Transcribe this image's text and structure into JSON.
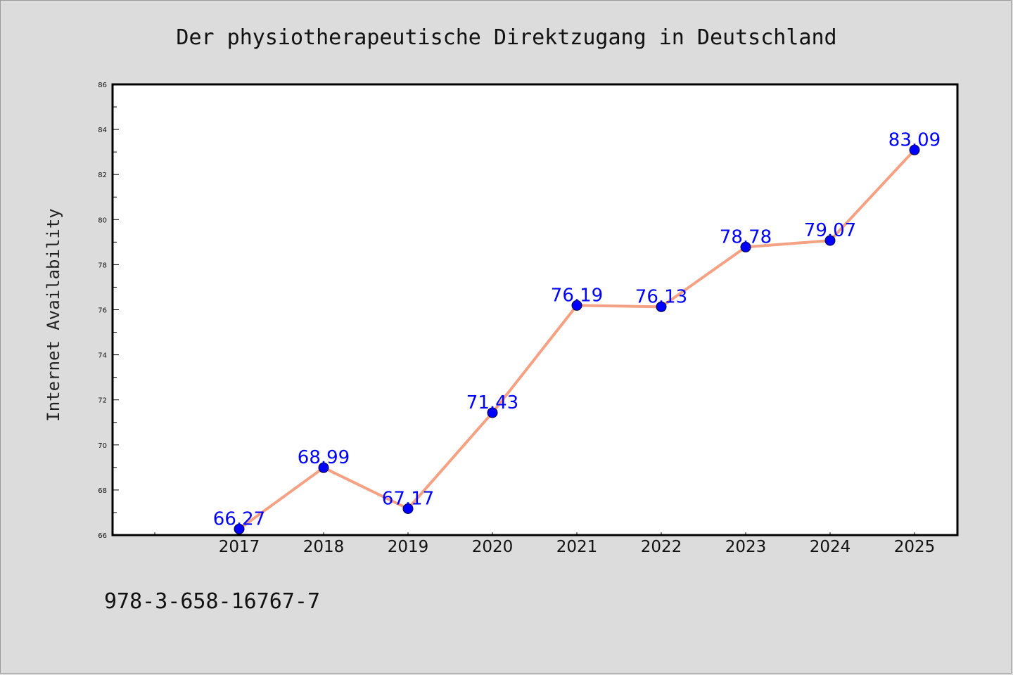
{
  "chart_data": {
    "type": "line",
    "title": "Der physiotherapeutische Direktzugang in Deutschland",
    "xlabel": "",
    "ylabel": "Internet Availability",
    "categories": [
      "2017",
      "2018",
      "2019",
      "2020",
      "2021",
      "2022",
      "2023",
      "2024",
      "2025"
    ],
    "values": [
      66.27,
      68.99,
      67.17,
      71.43,
      76.19,
      76.13,
      78.78,
      79.07,
      83.09
    ],
    "data_labels": [
      "66.27",
      "68.99",
      "67.17",
      "71.43",
      "76.19",
      "76.13",
      "78.78",
      "79.07",
      "83.09"
    ],
    "ylim": [
      66,
      86
    ],
    "yticks": [
      "66",
      "68",
      "70",
      "72",
      "74",
      "76",
      "78",
      "80",
      "82",
      "84",
      "86"
    ],
    "line_color": "#f4a283",
    "marker_color": "#0000ff",
    "label_color": "#0000ff",
    "grid": false,
    "legend": "none"
  },
  "footer": {
    "isbn": "978-3-658-16767-7"
  }
}
